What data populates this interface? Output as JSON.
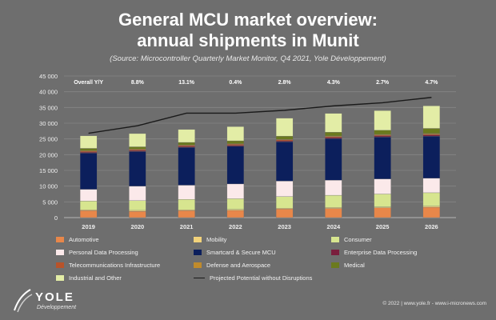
{
  "header": {
    "title_line1": "General MCU market overview:",
    "title_line2": "annual shipments in Munit",
    "subtitle": "(Source: Microcontroller Quarterly Market Monitor, Q4 2021, Yole Développement)"
  },
  "brand": {
    "logo_text": "YOLE",
    "logo_sub": "Développement",
    "footer": "© 2022 | www.yole.fr - www.i-micronews.com"
  },
  "chart_data": {
    "type": "bar",
    "stacked": true,
    "title": "General MCU market overview: annual shipments in Munit",
    "categories": [
      "2019",
      "2020",
      "2021",
      "2022",
      "2023",
      "2024",
      "2025",
      "2026"
    ],
    "ylim": [
      0,
      45000
    ],
    "yticks": [
      0,
      5000,
      10000,
      15000,
      20000,
      25000,
      30000,
      35000,
      40000,
      45000
    ],
    "ytick_labels": [
      "0",
      "5 000",
      "10 000",
      "15 000",
      "20 000",
      "25 000",
      "30 000",
      "35 000",
      "40 000",
      "45 000"
    ],
    "grid": true,
    "legend_position": "bottom",
    "yoy_label": "Overall Y/Y",
    "yoy_values": [
      "",
      "8.8%",
      "13.1%",
      "0.4%",
      "2.8%",
      "4.3%",
      "2.7%",
      "4.7%"
    ],
    "series": [
      {
        "name": "Automotive",
        "color": "#e8874a",
        "values": [
          2200,
          2000,
          2200,
          2300,
          2700,
          2900,
          3100,
          3300
        ]
      },
      {
        "name": "Mobility",
        "color": "#f2d27a",
        "values": [
          300,
          300,
          300,
          300,
          300,
          300,
          300,
          300
        ]
      },
      {
        "name": "Consumer",
        "color": "#d7e58f",
        "values": [
          2800,
          3100,
          3300,
          3400,
          3700,
          3900,
          4100,
          4300
        ]
      },
      {
        "name": "Personal Data Processing",
        "color": "#fbe9ea",
        "values": [
          3700,
          4600,
          4500,
          4700,
          4900,
          4800,
          4800,
          4600
        ]
      },
      {
        "name": "Smartcard & Secure MCU",
        "color": "#0c1f5c",
        "values": [
          11500,
          11000,
          12000,
          12000,
          12500,
          13200,
          13300,
          13400
        ]
      },
      {
        "name": "Enterprise Data Processing",
        "color": "#7a1e3d",
        "values": [
          300,
          300,
          300,
          300,
          300,
          350,
          350,
          350
        ]
      },
      {
        "name": "Telecommunications Infrastructure",
        "color": "#b8532a",
        "values": [
          300,
          300,
          300,
          300,
          300,
          300,
          300,
          300
        ]
      },
      {
        "name": "Defense and Aerospace",
        "color": "#c08b2c",
        "values": [
          200,
          200,
          200,
          200,
          200,
          200,
          200,
          200
        ]
      },
      {
        "name": "Medical",
        "color": "#6b7a1e",
        "values": [
          700,
          700,
          800,
          900,
          1000,
          1200,
          1300,
          1600
        ]
      },
      {
        "name": "Industrial and Other",
        "color": "#e3eda6",
        "values": [
          4000,
          4200,
          4100,
          4500,
          5700,
          5950,
          6250,
          7150
        ]
      }
    ],
    "line": {
      "name": "Projected Potential without Disruptions",
      "color": "#1a1a1a",
      "values": [
        26800,
        29200,
        33200,
        33200,
        34100,
        35500,
        36500,
        38200
      ]
    }
  }
}
